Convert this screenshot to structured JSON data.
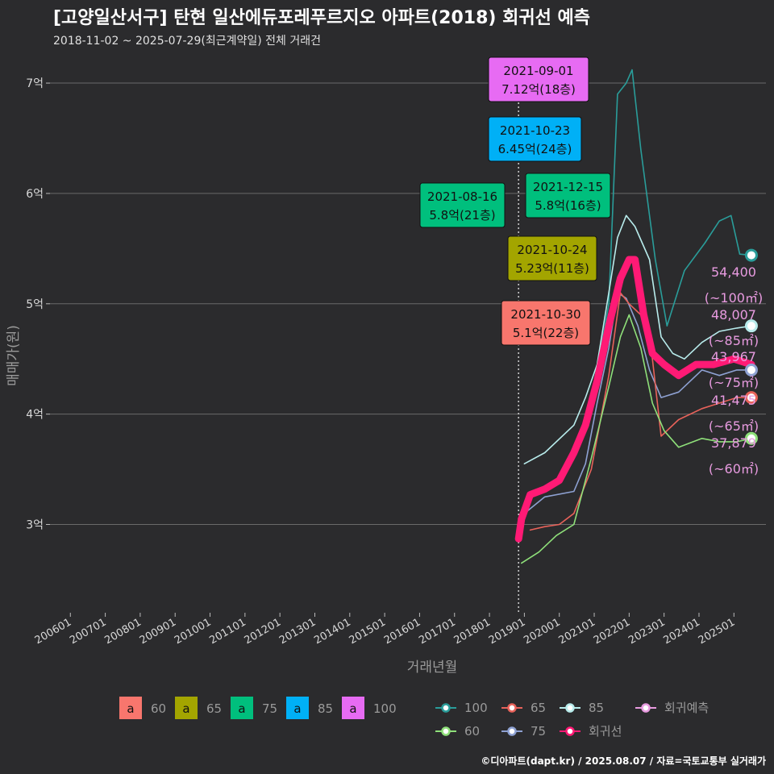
{
  "header": {
    "title": "[고양일산서구] 탄현 일산에듀포레푸르지오 아파트(2018) 회귀선 예측",
    "subtitle": "2018-11-02 ~ 2025-07-29(최근계약일) 전체 거래건"
  },
  "footer": {
    "credit": "©디아파트(dapt.kr) / 2025.08.07 / 자료=국토교통부 실거래가"
  },
  "chart_data": {
    "type": "line",
    "xlabel": "거래년월",
    "ylabel": "매매가(원)",
    "x_ticks": [
      "200601",
      "200701",
      "200801",
      "200901",
      "201001",
      "201101",
      "201201",
      "201301",
      "201401",
      "201501",
      "201601",
      "201701",
      "201801",
      "201901",
      "202001",
      "202101",
      "202201",
      "202301",
      "202401",
      "202501"
    ],
    "xlim": [
      "2005-06",
      "2025-12"
    ],
    "y_ticks": [
      {
        "value": 3,
        "label": "3억"
      },
      {
        "value": 4,
        "label": "4억"
      },
      {
        "value": 5,
        "label": "5억"
      },
      {
        "value": 6,
        "label": "6억"
      },
      {
        "value": 7,
        "label": "7억"
      }
    ],
    "ylim": [
      2.2,
      7.3
    ],
    "grid": true,
    "vline_date": "2018-11",
    "colors": {
      "60": "#f8766d",
      "65": "#a3a500",
      "75": "#00bf7d",
      "85": "#00b0f6",
      "100": "#e76bf3"
    },
    "line_colors": {
      "100": "#2a9d9a",
      "85": "#b8ecec",
      "75": "#8ea1d2",
      "65": "#e8625a",
      "60": "#8fe07a",
      "regression": "#ff1a75",
      "forecast": "#e89be0"
    },
    "series": [
      {
        "name": "100",
        "points": [
          [
            "2020-10",
            3.95
          ],
          [
            "2021-02",
            4.4
          ],
          [
            "2021-06",
            5.0
          ],
          [
            "2021-09",
            6.9
          ],
          [
            "2021-12",
            7.0
          ],
          [
            "2022-02",
            7.12
          ],
          [
            "2022-05",
            6.4
          ],
          [
            "2022-10",
            5.4
          ],
          [
            "2023-02",
            4.8
          ],
          [
            "2023-08",
            5.3
          ],
          [
            "2024-03",
            5.55
          ],
          [
            "2024-08",
            5.75
          ],
          [
            "2024-12",
            5.8
          ],
          [
            "2025-03",
            5.45
          ],
          [
            "2025-07",
            5.44
          ]
        ]
      },
      {
        "name": "85",
        "points": [
          [
            "2019-01",
            3.55
          ],
          [
            "2019-08",
            3.65
          ],
          [
            "2020-06",
            3.9
          ],
          [
            "2020-10",
            4.15
          ],
          [
            "2021-02",
            4.45
          ],
          [
            "2021-06",
            5.1
          ],
          [
            "2021-09",
            5.6
          ],
          [
            "2021-12",
            5.8
          ],
          [
            "2022-03",
            5.7
          ],
          [
            "2022-08",
            5.4
          ],
          [
            "2022-12",
            4.7
          ],
          [
            "2023-04",
            4.55
          ],
          [
            "2023-08",
            4.5
          ],
          [
            "2024-02",
            4.65
          ],
          [
            "2024-08",
            4.75
          ],
          [
            "2025-02",
            4.78
          ],
          [
            "2025-07",
            4.8
          ]
        ]
      },
      {
        "name": "75",
        "points": [
          [
            "2019-01",
            3.1
          ],
          [
            "2019-08",
            3.25
          ],
          [
            "2020-06",
            3.3
          ],
          [
            "2020-10",
            3.55
          ],
          [
            "2021-02",
            4.1
          ],
          [
            "2021-06",
            4.6
          ],
          [
            "2021-09",
            5.1
          ],
          [
            "2021-12",
            5.05
          ],
          [
            "2022-04",
            4.8
          ],
          [
            "2022-08",
            4.4
          ],
          [
            "2022-12",
            4.15
          ],
          [
            "2023-06",
            4.2
          ],
          [
            "2024-02",
            4.4
          ],
          [
            "2024-08",
            4.35
          ],
          [
            "2025-02",
            4.4
          ],
          [
            "2025-07",
            4.4
          ]
        ]
      },
      {
        "name": "65",
        "points": [
          [
            "2019-03",
            2.95
          ],
          [
            "2019-08",
            2.98
          ],
          [
            "2020-01",
            3.0
          ],
          [
            "2020-06",
            3.1
          ],
          [
            "2020-12",
            3.5
          ],
          [
            "2021-06",
            4.35
          ],
          [
            "2021-10",
            5.1
          ],
          [
            "2022-01",
            5.0
          ],
          [
            "2022-05",
            4.9
          ],
          [
            "2022-09",
            4.5
          ],
          [
            "2022-12",
            3.8
          ],
          [
            "2023-06",
            3.95
          ],
          [
            "2024-02",
            4.05
          ],
          [
            "2024-08",
            4.1
          ],
          [
            "2025-02",
            4.15
          ],
          [
            "2025-07",
            4.15
          ]
        ]
      },
      {
        "name": "60",
        "points": [
          [
            "2018-12",
            2.65
          ],
          [
            "2019-06",
            2.75
          ],
          [
            "2019-12",
            2.9
          ],
          [
            "2020-06",
            3.0
          ],
          [
            "2020-12",
            3.6
          ],
          [
            "2021-06",
            4.25
          ],
          [
            "2021-10",
            4.7
          ],
          [
            "2022-01",
            4.9
          ],
          [
            "2022-05",
            4.6
          ],
          [
            "2022-09",
            4.1
          ],
          [
            "2023-01",
            3.85
          ],
          [
            "2023-06",
            3.7
          ],
          [
            "2024-02",
            3.78
          ],
          [
            "2024-08",
            3.75
          ],
          [
            "2025-02",
            3.75
          ],
          [
            "2025-07",
            3.78
          ]
        ]
      },
      {
        "name": "회귀선",
        "points": [
          [
            "2018-11",
            2.87
          ],
          [
            "2018-12",
            3.05
          ],
          [
            "2019-03",
            3.27
          ],
          [
            "2019-08",
            3.32
          ],
          [
            "2020-01",
            3.4
          ],
          [
            "2020-06",
            3.65
          ],
          [
            "2020-10",
            3.9
          ],
          [
            "2021-02",
            4.3
          ],
          [
            "2021-06",
            4.8
          ],
          [
            "2021-10",
            5.23
          ],
          [
            "2022-01",
            5.4
          ],
          [
            "2022-03",
            5.4
          ],
          [
            "2022-06",
            4.9
          ],
          [
            "2022-09",
            4.55
          ],
          [
            "2023-01",
            4.45
          ],
          [
            "2023-06",
            4.35
          ],
          [
            "2023-12",
            4.45
          ],
          [
            "2024-06",
            4.45
          ],
          [
            "2025-01",
            4.5
          ],
          [
            "2025-07",
            4.45
          ]
        ]
      }
    ],
    "forecasts": [
      {
        "name": "100",
        "value": "54,400",
        "area": "(~100㎡)",
        "y": 5.44
      },
      {
        "name": "85",
        "value": "48,007",
        "area": "(~85㎡)",
        "y": 4.8
      },
      {
        "name": "75",
        "value": "43,967",
        "area": "(~75㎡)",
        "y": 4.4
      },
      {
        "name": "65",
        "value": "41,475",
        "area": "(~65㎡)",
        "y": 4.15
      },
      {
        "name": "60",
        "value": "37,879",
        "area": "(~60㎡)",
        "y": 3.78
      }
    ],
    "annotations": [
      {
        "group": "100",
        "date": "2021-09-01",
        "text": "7.12억(18층)",
        "y": 7.12
      },
      {
        "group": "85",
        "date": "2021-10-23",
        "text": "6.45억(24층)",
        "y": 6.45
      },
      {
        "group": "75",
        "date": "2021-08-16",
        "text": "5.8억(21층)",
        "y": 5.8
      },
      {
        "group": "75",
        "date": "2021-12-15",
        "text": "5.8억(16층)",
        "y": 5.8
      },
      {
        "group": "65",
        "date": "2021-10-24",
        "text": "5.23억(11층)",
        "y": 5.23
      },
      {
        "group": "60",
        "date": "2021-10-30",
        "text": "5.1억(22층)",
        "y": 5.1
      }
    ],
    "legend": {
      "placement": "bottom",
      "box_glyph": "a",
      "boxes": [
        "60",
        "65",
        "75",
        "85",
        "100"
      ],
      "lines": [
        "100",
        "65",
        "85",
        "회귀예측",
        "60",
        "75",
        "회귀선"
      ]
    }
  }
}
